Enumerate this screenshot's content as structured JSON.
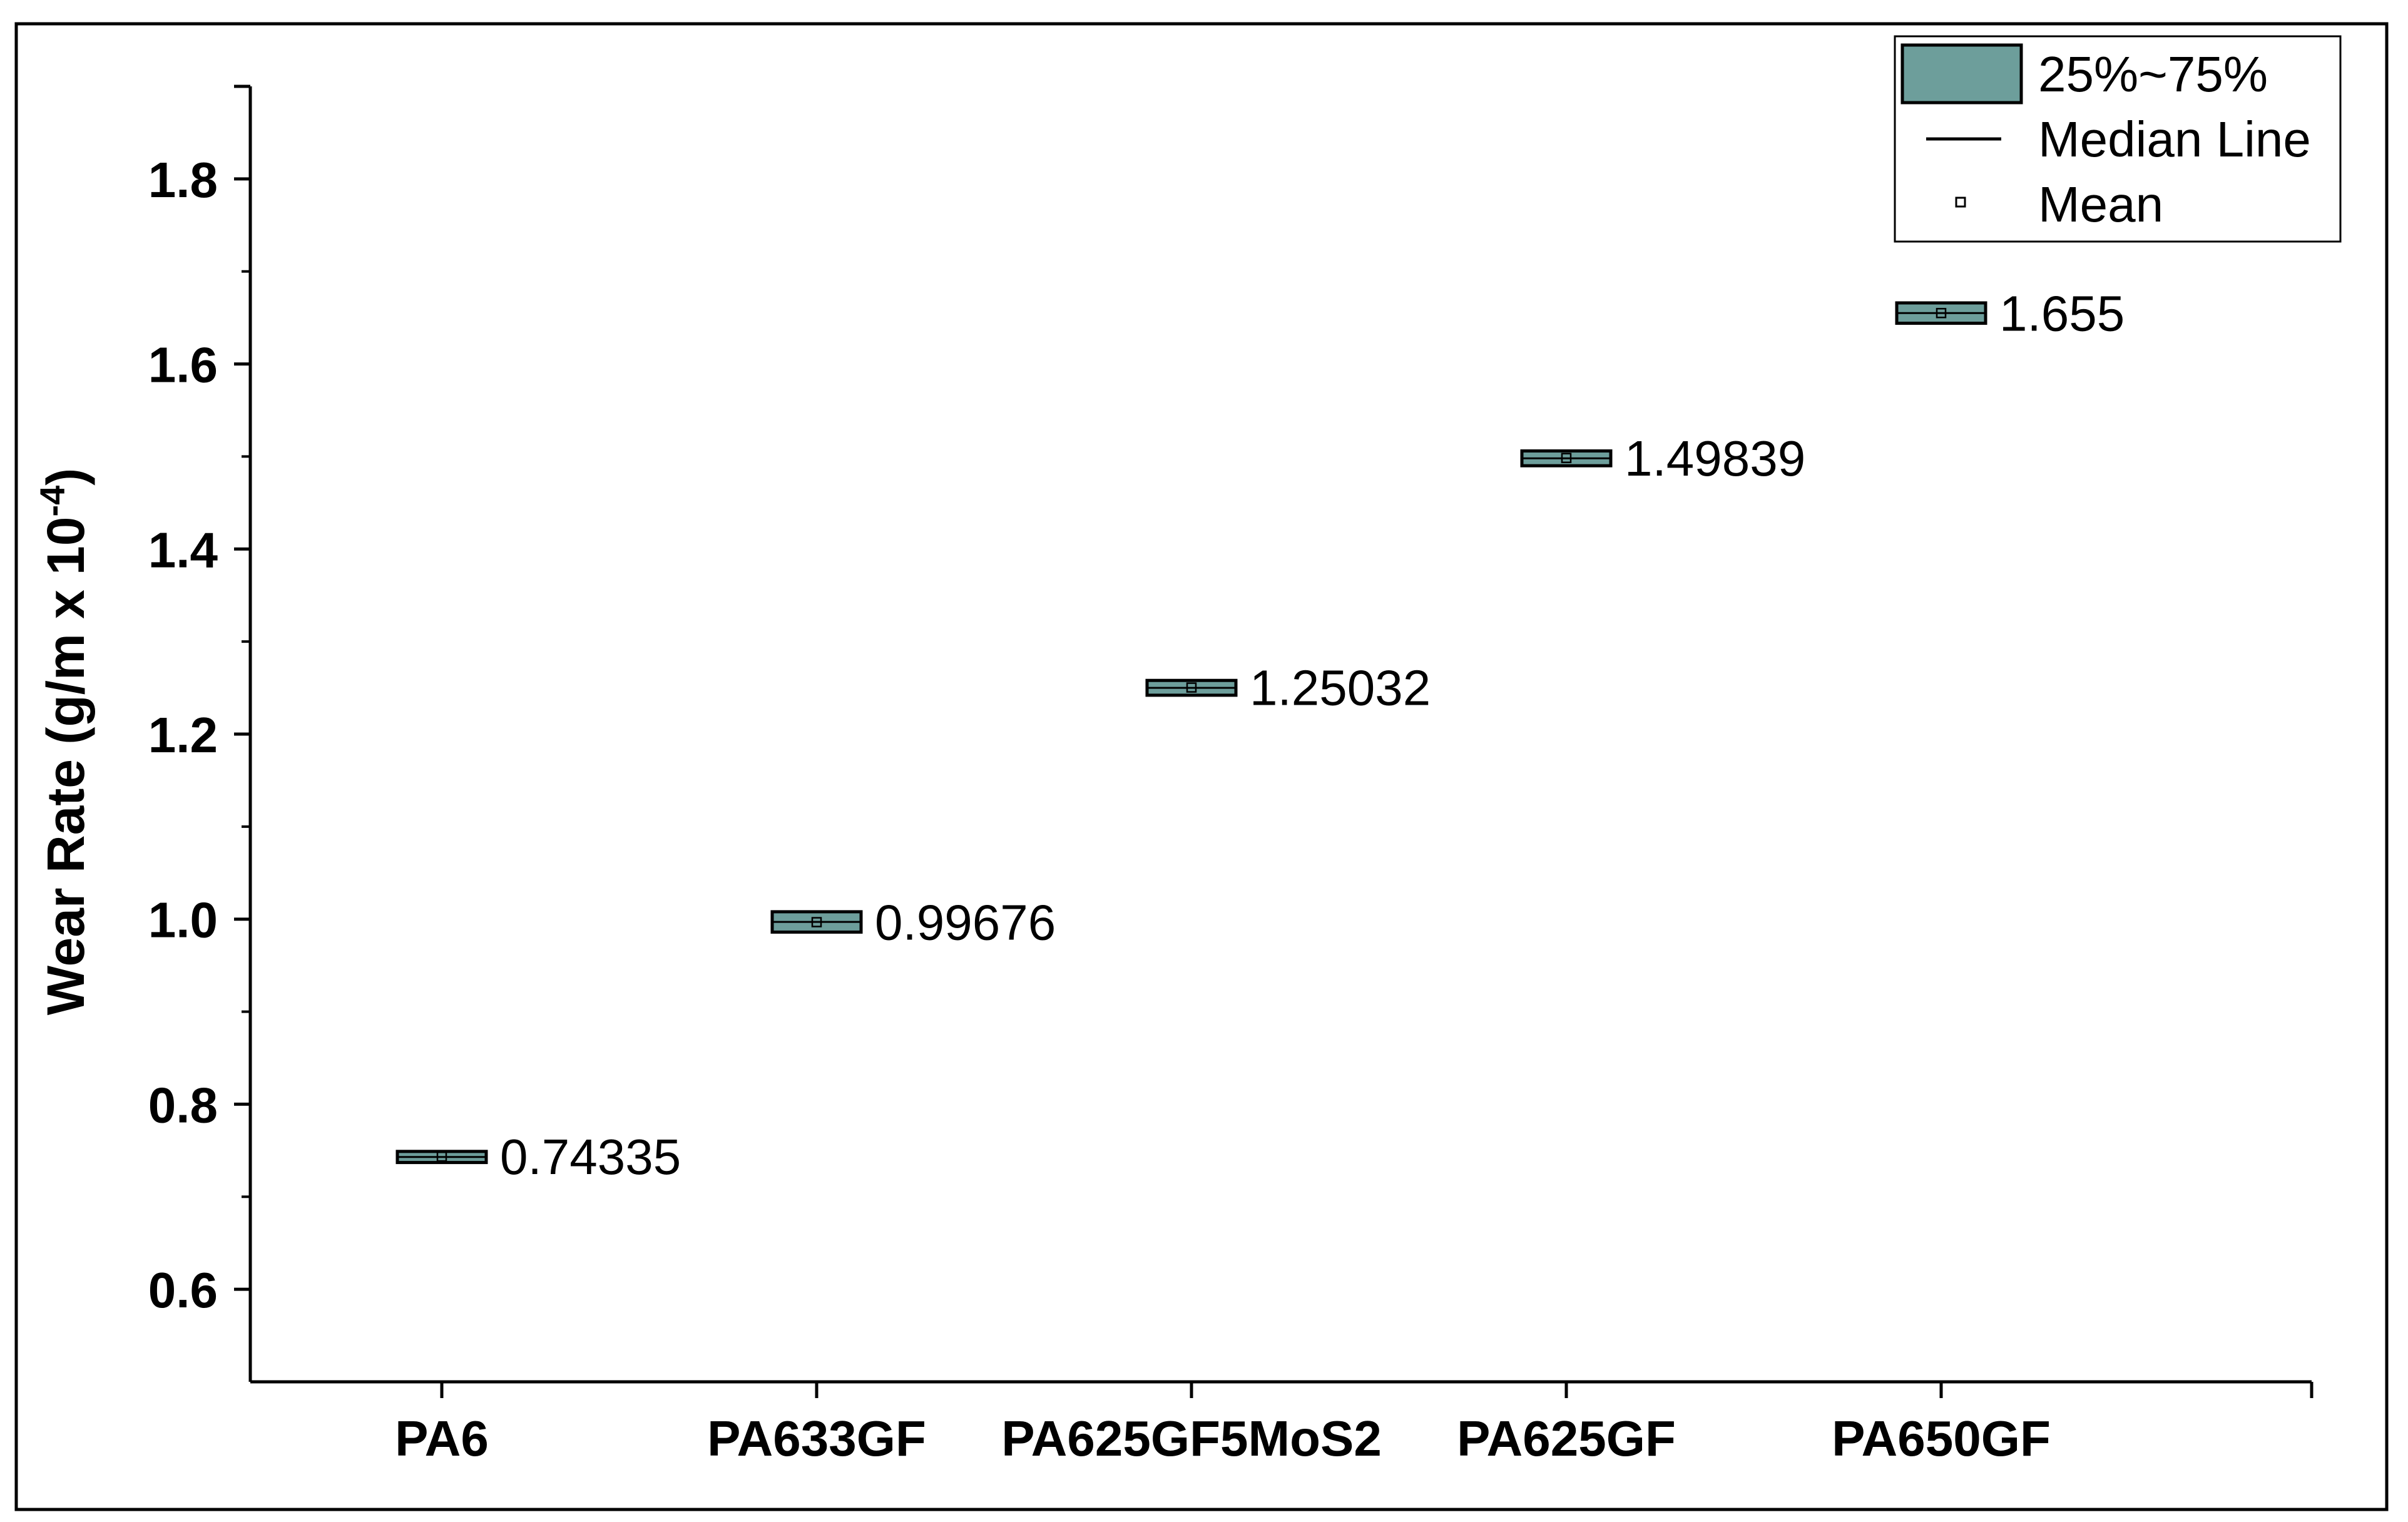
{
  "chart_data": {
    "type": "box",
    "categories": [
      "PA6",
      "PA633GF",
      "PA625GF5MoS2",
      "PA625GF",
      "PA650GF"
    ],
    "series": [
      {
        "boxes": [
          {
            "category": "PA6",
            "q1": 0.737,
            "median": 0.743,
            "q3": 0.749,
            "mean": 0.74335,
            "label": "0.74335"
          },
          {
            "category": "PA633GF",
            "q1": 0.986,
            "median": 0.997,
            "q3": 1.008,
            "mean": 0.99676,
            "label": "0.99676"
          },
          {
            "category": "PA625GF5MoS2",
            "q1": 1.242,
            "median": 1.25,
            "q3": 1.258,
            "mean": 1.25032,
            "label": "1.25032"
          },
          {
            "category": "PA625GF",
            "q1": 1.49,
            "median": 1.498,
            "q3": 1.506,
            "mean": 1.49839,
            "label": "1.49839"
          },
          {
            "category": "PA650GF",
            "q1": 1.644,
            "median": 1.655,
            "q3": 1.666,
            "mean": 1.655,
            "label": "1.655"
          }
        ]
      }
    ],
    "ylabel": "Wear Rate (g/m x 10",
    "ylabel_sup": "-4",
    "ylabel_close": ")",
    "xlabel": "",
    "ylim": [
      0.5,
      1.9
    ],
    "yticks": [
      {
        "value": 0.6,
        "label": "0.6"
      },
      {
        "value": 0.8,
        "label": "0.8"
      },
      {
        "value": 1.0,
        "label": "1.0"
      },
      {
        "value": 1.2,
        "label": "1.2"
      },
      {
        "value": 1.4,
        "label": "1.4"
      },
      {
        "value": 1.6,
        "label": "1.6"
      },
      {
        "value": 1.8,
        "label": "1.8"
      }
    ],
    "yminor": [
      0.7,
      0.9,
      1.1,
      1.3,
      1.5,
      1.7
    ],
    "grid": false,
    "legend": {
      "placement": "top-right",
      "items": [
        {
          "kind": "box",
          "label": "25%~75%"
        },
        {
          "kind": "line",
          "label": "Median Line"
        },
        {
          "kind": "mean",
          "label": "Mean"
        }
      ]
    },
    "colors": {
      "box_fill": "#6d9e9b",
      "stroke": "#000000",
      "background": "#ffffff"
    }
  }
}
